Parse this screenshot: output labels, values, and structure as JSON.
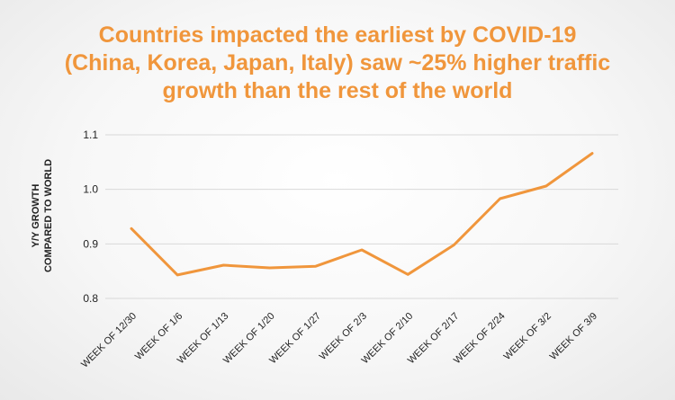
{
  "title_lines": [
    "Countries impacted the earliest by COVID-19",
    "(China, Korea, Japan, Italy) saw ~25% higher traffic",
    "growth than the rest of the world"
  ],
  "chart_data": {
    "type": "line",
    "title": "Countries impacted the earliest by COVID-19 (China, Korea, Japan, Italy) saw ~25% higher traffic growth than the rest of the world",
    "xlabel": "",
    "ylabel_lines": [
      "Y/Y GROWTH",
      "COMPARED TO WORLD"
    ],
    "categories": [
      "WEEK OF 12/30",
      "WEEK OF 1/6",
      "WEEK OF 1/13",
      "WEEK OF 1/20",
      "WEEK OF 1/27",
      "WEEK OF 2/3",
      "WEEK OF 2/10",
      "WEEK OF 2/17",
      "WEEK OF 2/24",
      "WEEK OF 3/2",
      "WEEK OF 3/9"
    ],
    "series": [
      {
        "values": [
          0.928,
          0.843,
          0.861,
          0.856,
          0.859,
          0.889,
          0.844,
          0.898,
          0.983,
          1.006,
          1.066
        ]
      }
    ],
    "ylim": [
      0.8,
      1.1
    ],
    "yticks": [
      "0.8",
      "0.9",
      "1.0",
      "1.1"
    ],
    "grid": true,
    "colors": {
      "line": "#f0963c",
      "title": "#f0963c",
      "grid": "#d9d9d9",
      "text": "#222222"
    }
  }
}
